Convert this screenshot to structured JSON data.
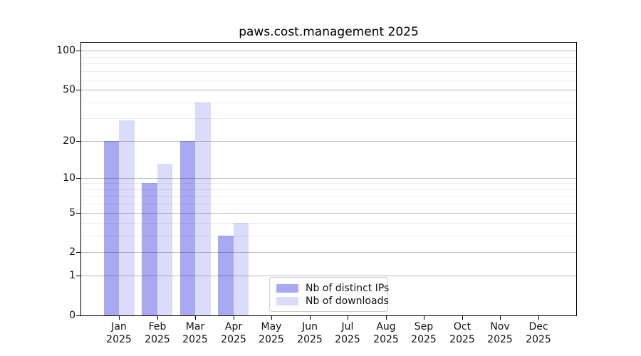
{
  "figure": {
    "title": "paws.cost.management 2025",
    "background_color": "#ffffff",
    "spine_color": "#000000"
  },
  "legend": {
    "items": [
      {
        "label": "Nb of distinct IPs",
        "color": "#abahide"
      }
    ]
  },
  "chart_data": {
    "type": "bar",
    "title": "paws.cost.management 2025",
    "yscale": "log1p",
    "ylim": [
      0,
      115
    ],
    "grid": true,
    "legend_position": "lower center",
    "categories": [
      "Jan",
      "Feb",
      "Mar",
      "Apr",
      "May",
      "Jun",
      "Jul",
      "Aug",
      "Sep",
      "Oct",
      "Nov",
      "Dec"
    ],
    "x_tick_year": "2025",
    "series": [
      {
        "name": "Nb of distinct IPs",
        "color": "#a9a9f3",
        "values": [
          20,
          9,
          20,
          3,
          0,
          0,
          0,
          0,
          0,
          0,
          0,
          0
        ]
      },
      {
        "name": "Nb of downloads",
        "color": "#dcdcfa",
        "values": [
          29,
          13,
          40,
          4,
          0,
          0,
          0,
          0,
          0,
          0,
          0,
          0
        ]
      }
    ],
    "y_major_ticks": [
      0,
      1,
      2,
      5,
      10,
      20,
      50,
      100
    ],
    "y_minor_gridlines": [
      3,
      4,
      6,
      7,
      8,
      9,
      30,
      40,
      60,
      70,
      80,
      90
    ]
  }
}
